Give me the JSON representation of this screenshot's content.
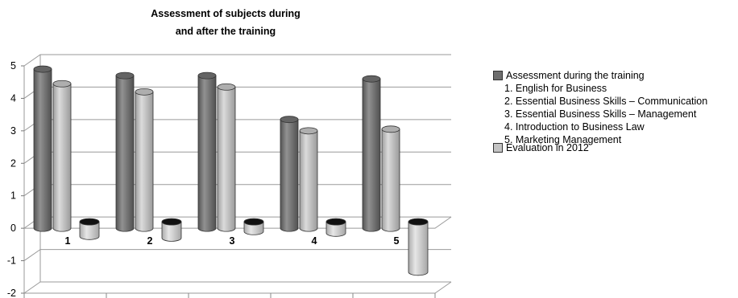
{
  "chart_data": {
    "type": "bar",
    "title_line1": "Assessment of subjects during",
    "title_line2": "and after the training",
    "categories": [
      "1",
      "2",
      "3",
      "4",
      "5"
    ],
    "series": [
      {
        "name": "Assessment during the training",
        "values": [
          4.9,
          4.7,
          4.7,
          3.35,
          4.6
        ],
        "color": "#6e6e6e"
      },
      {
        "name": "",
        "values": [
          4.45,
          4.2,
          4.35,
          3.0,
          3.05
        ],
        "color": "#b8b8b8"
      },
      {
        "name": "Evaluation in 2012",
        "values": [
          -0.45,
          -0.5,
          -0.3,
          -0.35,
          -1.55
        ],
        "color": "#c4c4c4"
      }
    ],
    "ylim": [
      -2,
      5
    ],
    "yticks": [
      "-2",
      "-1",
      "0",
      "1",
      "2",
      "3",
      "4",
      "5"
    ],
    "grid": true,
    "legend_position": "right",
    "legend_items": [
      "1. English for Business",
      "2. Essential Business Skills – Communication",
      "3. Essential Business Skills – Management",
      "4. Introduction to Business Law",
      "5. Marketing Management"
    ]
  }
}
